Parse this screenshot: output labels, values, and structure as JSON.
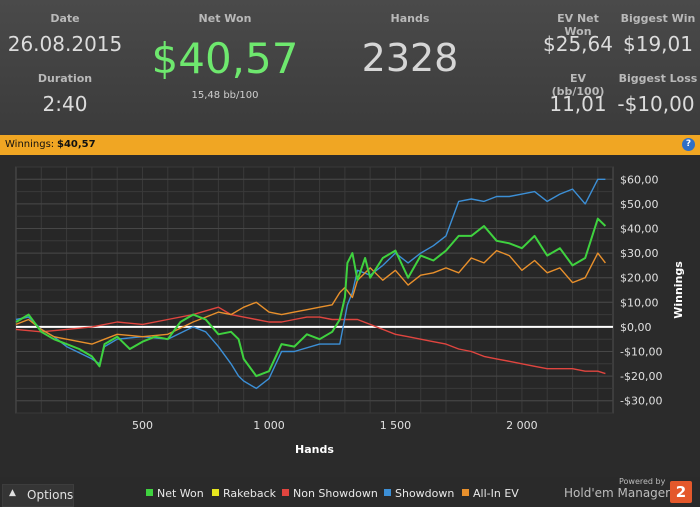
{
  "stats": {
    "date_label": "Date",
    "date_value": "26.08.2015",
    "duration_label": "Duration",
    "duration_value": "2:40",
    "net_won_label": "Net Won",
    "net_won_value": "$40,57",
    "net_won_sub": "15,48 bb/100",
    "hands_label": "Hands",
    "hands_value": "2328",
    "ev_net_won_label": "EV Net Won",
    "ev_net_won_value": "$25,64",
    "biggest_win_label": "Biggest Win",
    "biggest_win_value": "$19,01",
    "ev_bb100_label": "EV (bb/100)",
    "ev_bb100_value": "11,01",
    "biggest_loss_label": "Biggest Loss",
    "biggest_loss_value": "-$10,00"
  },
  "banner": {
    "label": "Winnings:",
    "value": "$40,57",
    "help_icon": "question-icon"
  },
  "footer": {
    "options_label": "Options",
    "options_icon": "chevron-up-icon",
    "powered_by": "Powered by",
    "brand": "Hold'em Manager",
    "brand_logo": "2"
  },
  "colors": {
    "net_won": "#3fd23f",
    "rakeback": "#e6e61e",
    "non_showdown": "#e0453f",
    "showdown": "#3c8fd6",
    "all_in_ev": "#e8902c",
    "banner": "#f0a623",
    "net_won_text": "#6ee86e"
  },
  "chart_data": {
    "type": "line",
    "xlabel": "Hands",
    "ylabel": "Winnings",
    "xlim": [
      0,
      2360
    ],
    "ylim": [
      -35,
      65
    ],
    "x_ticks": [
      500,
      1000,
      1500,
      2000
    ],
    "x_tick_labels": [
      "500",
      "1 000",
      "1 500",
      "2 000"
    ],
    "y_ticks": [
      -30,
      -20,
      -10,
      0,
      10,
      20,
      30,
      40,
      50,
      60
    ],
    "y_tick_labels": [
      "-$30,00",
      "-$20,00",
      "-$10,00",
      "$0,00",
      "$10,00",
      "$20,00",
      "$30,00",
      "$40,00",
      "$50,00",
      "$60,00"
    ],
    "grid": true,
    "legend_position": "bottom",
    "series": [
      {
        "name": "Net Won",
        "color": "#3fd23f",
        "x": [
          0,
          50,
          100,
          150,
          200,
          250,
          300,
          330,
          350,
          400,
          450,
          500,
          550,
          600,
          650,
          700,
          750,
          800,
          850,
          880,
          900,
          950,
          1000,
          1050,
          1100,
          1150,
          1200,
          1250,
          1280,
          1300,
          1310,
          1330,
          1350,
          1380,
          1400,
          1450,
          1500,
          1550,
          1600,
          1650,
          1700,
          1750,
          1800,
          1850,
          1900,
          1950,
          2000,
          2050,
          2100,
          2150,
          2200,
          2250,
          2300,
          2330
        ],
        "y": [
          2,
          5,
          -2,
          -5,
          -7,
          -9,
          -12,
          -16,
          -7,
          -4,
          -9,
          -6,
          -4,
          -5,
          2,
          5,
          3,
          -3,
          -2,
          -5,
          -13,
          -20,
          -18,
          -7,
          -8,
          -3,
          -5,
          -2,
          3,
          12,
          26,
          30,
          19,
          28,
          20,
          28,
          31,
          20,
          29,
          27,
          31,
          37,
          37,
          41,
          35,
          34,
          32,
          37,
          29,
          32,
          25,
          28,
          44,
          41
        ]
      },
      {
        "name": "Rakeback",
        "color": "#e6e61e",
        "x": [
          0,
          2330
        ],
        "y": [
          0,
          0
        ]
      },
      {
        "name": "Non Showdown",
        "color": "#e0453f",
        "x": [
          0,
          100,
          200,
          300,
          400,
          500,
          600,
          700,
          800,
          850,
          900,
          950,
          1000,
          1050,
          1100,
          1150,
          1200,
          1250,
          1300,
          1350,
          1400,
          1450,
          1500,
          1550,
          1600,
          1650,
          1700,
          1750,
          1800,
          1850,
          1900,
          1950,
          2000,
          2050,
          2100,
          2150,
          2200,
          2250,
          2300,
          2330
        ],
        "y": [
          -1,
          -2,
          -1,
          0,
          2,
          1,
          3,
          5,
          8,
          5,
          4,
          3,
          2,
          2,
          3,
          4,
          4,
          3,
          3,
          3,
          1,
          -1,
          -3,
          -4,
          -5,
          -6,
          -7,
          -9,
          -10,
          -12,
          -13,
          -14,
          -15,
          -16,
          -17,
          -17,
          -17,
          -18,
          -18,
          -19
        ]
      },
      {
        "name": "Showdown",
        "color": "#3c8fd6",
        "x": [
          0,
          50,
          100,
          150,
          200,
          300,
          330,
          350,
          400,
          500,
          600,
          700,
          750,
          800,
          850,
          880,
          900,
          950,
          1000,
          1050,
          1100,
          1200,
          1280,
          1310,
          1330,
          1350,
          1400,
          1450,
          1500,
          1550,
          1600,
          1650,
          1700,
          1750,
          1800,
          1850,
          1900,
          1950,
          2000,
          2050,
          2100,
          2150,
          2200,
          2250,
          2300,
          2330
        ],
        "y": [
          3,
          4,
          -1,
          -4,
          -8,
          -13,
          -15,
          -8,
          -5,
          -4,
          -5,
          0,
          -2,
          -8,
          -15,
          -20,
          -22,
          -25,
          -21,
          -10,
          -10,
          -7,
          -7,
          9,
          14,
          23,
          21,
          25,
          30,
          26,
          30,
          33,
          37,
          51,
          52,
          51,
          53,
          53,
          54,
          55,
          51,
          54,
          56,
          50,
          60,
          60
        ]
      },
      {
        "name": "All-In EV",
        "color": "#e8902c",
        "x": [
          0,
          50,
          100,
          150,
          200,
          300,
          350,
          400,
          500,
          600,
          700,
          750,
          800,
          850,
          900,
          950,
          1000,
          1050,
          1100,
          1150,
          1200,
          1250,
          1280,
          1300,
          1330,
          1350,
          1400,
          1450,
          1500,
          1550,
          1600,
          1650,
          1700,
          1750,
          1800,
          1850,
          1900,
          1950,
          2000,
          2050,
          2100,
          2150,
          2200,
          2250,
          2300,
          2330
        ],
        "y": [
          1,
          3,
          -1,
          -4,
          -5,
          -7,
          -5,
          -3,
          -4,
          -3,
          2,
          4,
          6,
          5,
          8,
          10,
          6,
          5,
          6,
          7,
          8,
          9,
          14,
          16,
          12,
          19,
          24,
          19,
          23,
          17,
          21,
          22,
          24,
          22,
          28,
          26,
          31,
          29,
          23,
          27,
          22,
          24,
          18,
          20,
          30,
          26
        ]
      }
    ]
  }
}
